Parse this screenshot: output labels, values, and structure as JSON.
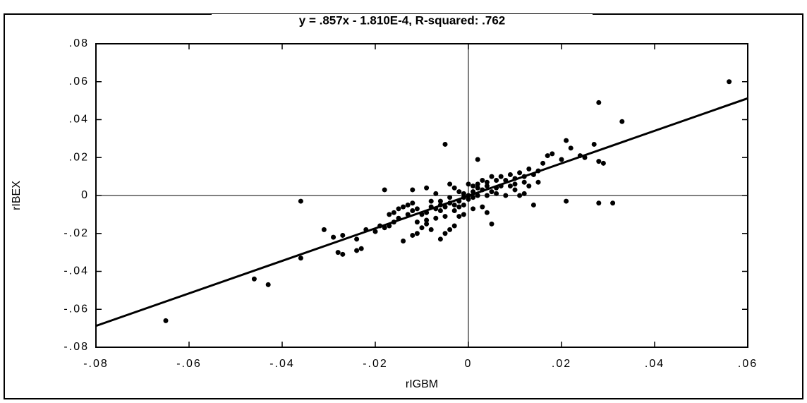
{
  "chart_data": {
    "type": "scatter",
    "title": "y  =  .857x  -  1.810E-4,  R-squared:  .762",
    "x_label": "rIGBM",
    "y_label": "rIBEX",
    "color": "#000000",
    "fit": {
      "slope": 0.857,
      "intercept": -0.000181
    },
    "xlim": [
      -0.08,
      0.06
    ],
    "ylim": [
      -0.08,
      0.08
    ],
    "xticks": [
      {
        "value": -0.08,
        "label": "-.08"
      },
      {
        "value": -0.06,
        "label": "-.06"
      },
      {
        "value": -0.04,
        "label": "-.04"
      },
      {
        "value": -0.02,
        "label": "-.02"
      },
      0,
      {
        "value": 0.02,
        "label": ".02"
      },
      {
        "value": 0.04,
        "label": ".04"
      },
      {
        "value": 0.06,
        "label": ".06"
      }
    ],
    "yticks": [
      {
        "value": -0.08,
        "label": "-.08"
      },
      {
        "value": -0.06,
        "label": "-.06"
      },
      {
        "value": -0.04,
        "label": "-.04"
      },
      {
        "value": -0.02,
        "label": "-.02"
      },
      0,
      {
        "value": 0.02,
        "label": ".02"
      },
      {
        "value": 0.04,
        "label": ".04"
      },
      {
        "value": 0.06,
        "label": ".06"
      },
      {
        "value": 0.08,
        "label": ".08"
      }
    ],
    "zero_lines": true,
    "x": [
      0.056,
      0.028,
      0.033,
      0.027,
      0.028,
      0.029,
      0.021,
      0.022,
      0.028,
      0.031,
      0.021,
      0.014,
      0.018,
      0.017,
      0.024,
      0.025,
      0.02,
      0.016,
      0.013,
      -0.005,
      0.002,
      -0.065,
      -0.046,
      -0.043,
      -0.036,
      -0.036,
      -0.031,
      -0.029,
      -0.028,
      -0.027,
      -0.027,
      -0.024,
      -0.023,
      -0.024,
      -0.022,
      -0.02,
      -0.019,
      -0.018,
      -0.017,
      -0.016,
      -0.015,
      -0.014,
      -0.012,
      -0.011,
      -0.01,
      -0.009,
      -0.008,
      -0.006,
      -0.005,
      -0.004,
      -0.003,
      -0.002,
      -0.001,
      0.001,
      0.004,
      0.005,
      0.003,
      -0.018,
      -0.012,
      -0.009,
      -0.007,
      -0.004,
      -0.003,
      0.0,
      0.004,
      0.006,
      0.008,
      0.01,
      0.012,
      0.011,
      0.009,
      0.007,
      0.01,
      0.012,
      0.013,
      0.015,
      0.014,
      0.015,
      0.011,
      0.008,
      0.006,
      0.005,
      0.003,
      0.002,
      0.001,
      0.0,
      -0.001,
      -0.002,
      -0.003,
      -0.004,
      -0.005,
      -0.006,
      -0.007,
      -0.008,
      -0.009,
      -0.01,
      -0.011,
      -0.012,
      -0.013,
      -0.014,
      -0.013,
      -0.016,
      -0.017,
      -0.015,
      -0.012,
      -0.006,
      -0.004,
      -0.002,
      0.001,
      0.003,
      0.005,
      0.007,
      0.009,
      0.002,
      -0.001,
      -0.003,
      -0.005,
      -0.007,
      -0.009,
      -0.011,
      0.004,
      0.006,
      0.0,
      -0.001,
      0.001,
      0.002,
      -0.006,
      -0.008,
      0.01,
      0.012,
      0.004,
      -0.002
    ],
    "values": [
      0.06,
      0.049,
      0.039,
      0.027,
      0.018,
      0.017,
      0.029,
      0.025,
      -0.004,
      -0.004,
      -0.003,
      -0.005,
      0.022,
      0.021,
      0.021,
      0.02,
      0.019,
      0.017,
      0.014,
      0.027,
      0.019,
      -0.066,
      -0.044,
      -0.047,
      -0.033,
      -0.003,
      -0.018,
      -0.022,
      -0.03,
      -0.031,
      -0.021,
      -0.029,
      -0.028,
      -0.023,
      -0.018,
      -0.019,
      -0.016,
      -0.017,
      -0.016,
      -0.014,
      -0.012,
      -0.024,
      -0.021,
      -0.02,
      -0.017,
      -0.015,
      -0.018,
      -0.023,
      -0.02,
      -0.018,
      -0.016,
      -0.011,
      -0.01,
      -0.007,
      -0.009,
      -0.015,
      -0.006,
      0.003,
      0.003,
      0.004,
      0.001,
      0.006,
      0.004,
      0.006,
      0.007,
      0.008,
      0.008,
      0.006,
      0.01,
      0.012,
      0.011,
      0.01,
      0.003,
      0.001,
      0.005,
      0.007,
      0.011,
      0.013,
      0.0,
      0.0,
      0.004,
      0.002,
      0.003,
      0.0,
      0.002,
      -0.002,
      0.001,
      -0.003,
      -0.005,
      -0.004,
      -0.006,
      -0.008,
      -0.007,
      -0.006,
      -0.009,
      -0.01,
      -0.007,
      -0.008,
      -0.005,
      -0.006,
      -0.01,
      -0.009,
      -0.01,
      -0.007,
      -0.004,
      -0.003,
      -0.001,
      0.002,
      0.005,
      0.008,
      0.01,
      0.005,
      0.005,
      0.006,
      -0.005,
      -0.008,
      -0.011,
      -0.012,
      -0.013,
      -0.014,
      0.0,
      0.001,
      0.0,
      -0.001,
      -0.001,
      0.004,
      -0.005,
      -0.003,
      0.009,
      0.007,
      0.005,
      -0.006
    ]
  }
}
